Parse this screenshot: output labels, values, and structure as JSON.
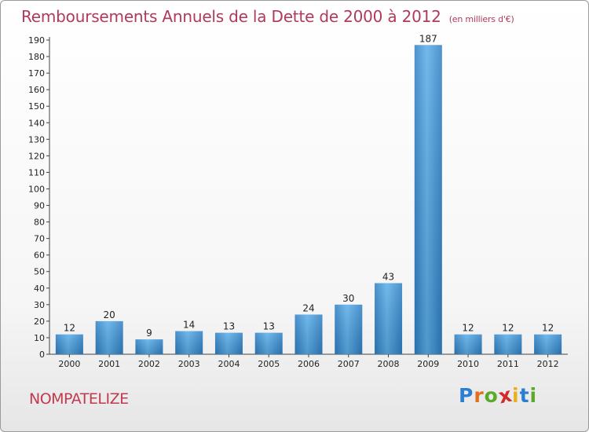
{
  "chart_data": {
    "type": "bar",
    "title": "Remboursements Annuels de la Dette de 2000 à 2012",
    "subtitle": "(en milliers d'€)",
    "categories": [
      "2000",
      "2001",
      "2002",
      "2003",
      "2004",
      "2005",
      "2006",
      "2007",
      "2008",
      "2009",
      "2010",
      "2011",
      "2012"
    ],
    "values": [
      12,
      20,
      9,
      14,
      13,
      13,
      24,
      30,
      43,
      187,
      12,
      12,
      12
    ],
    "ylim": [
      0,
      190
    ],
    "ytick_step": 10,
    "grid": false,
    "bar_color": "#3a8fd6"
  },
  "commune": "NOMPATELIZE",
  "logo": {
    "letters": [
      "P",
      "r",
      "o",
      "x",
      "i",
      "t",
      "i"
    ],
    "colors": [
      "#2a7fd4",
      "#e07020",
      "#5aaa2a",
      "#d42a2a",
      "#e8b020",
      "#2a7fd4",
      "#5aaa2a"
    ]
  }
}
